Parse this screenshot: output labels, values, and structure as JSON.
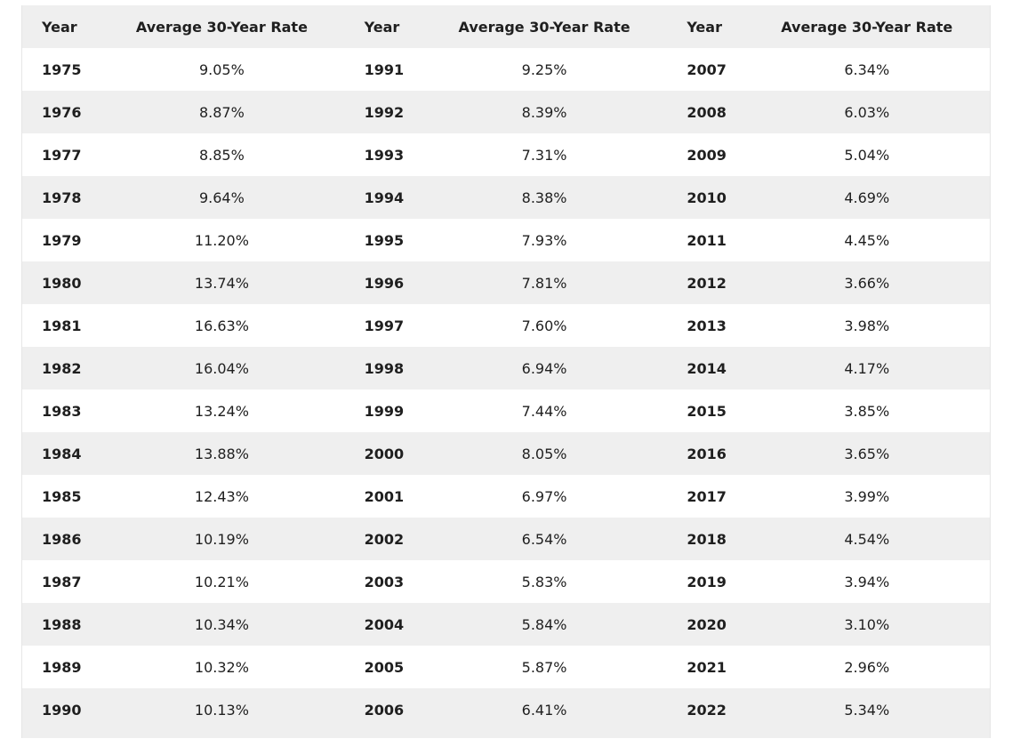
{
  "table": {
    "header": [
      "Year",
      "Average 30-Year Rate",
      "Year",
      "Average 30-Year Rate",
      "Year",
      "Average 30-Year Rate"
    ],
    "rows": [
      [
        "1975",
        "9.05%",
        "1991",
        "9.25%",
        "2007",
        "6.34%"
      ],
      [
        "1976",
        "8.87%",
        "1992",
        "8.39%",
        "2008",
        "6.03%"
      ],
      [
        "1977",
        "8.85%",
        "1993",
        "7.31%",
        "2009",
        "5.04%"
      ],
      [
        "1978",
        "9.64%",
        "1994",
        "8.38%",
        "2010",
        "4.69%"
      ],
      [
        "1979",
        "11.20%",
        "1995",
        "7.93%",
        "2011",
        "4.45%"
      ],
      [
        "1980",
        "13.74%",
        "1996",
        "7.81%",
        "2012",
        "3.66%"
      ],
      [
        "1981",
        "16.63%",
        "1997",
        "7.60%",
        "2013",
        "3.98%"
      ],
      [
        "1982",
        "16.04%",
        "1998",
        "6.94%",
        "2014",
        "4.17%"
      ],
      [
        "1983",
        "13.24%",
        "1999",
        "7.44%",
        "2015",
        "3.85%"
      ],
      [
        "1984",
        "13.88%",
        "2000",
        "8.05%",
        "2016",
        "3.65%"
      ],
      [
        "1985",
        "12.43%",
        "2001",
        "6.97%",
        "2017",
        "3.99%"
      ],
      [
        "1986",
        "10.19%",
        "2002",
        "6.54%",
        "2018",
        "4.54%"
      ],
      [
        "1987",
        "10.21%",
        "2003",
        "5.83%",
        "2019",
        "3.94%"
      ],
      [
        "1988",
        "10.34%",
        "2004",
        "5.84%",
        "2020",
        "3.10%"
      ],
      [
        "1989",
        "10.32%",
        "2005",
        "5.87%",
        "2021",
        "2.96%"
      ],
      [
        "1990",
        "10.13%",
        "2006",
        "6.41%",
        "2022",
        "5.34%"
      ]
    ]
  }
}
